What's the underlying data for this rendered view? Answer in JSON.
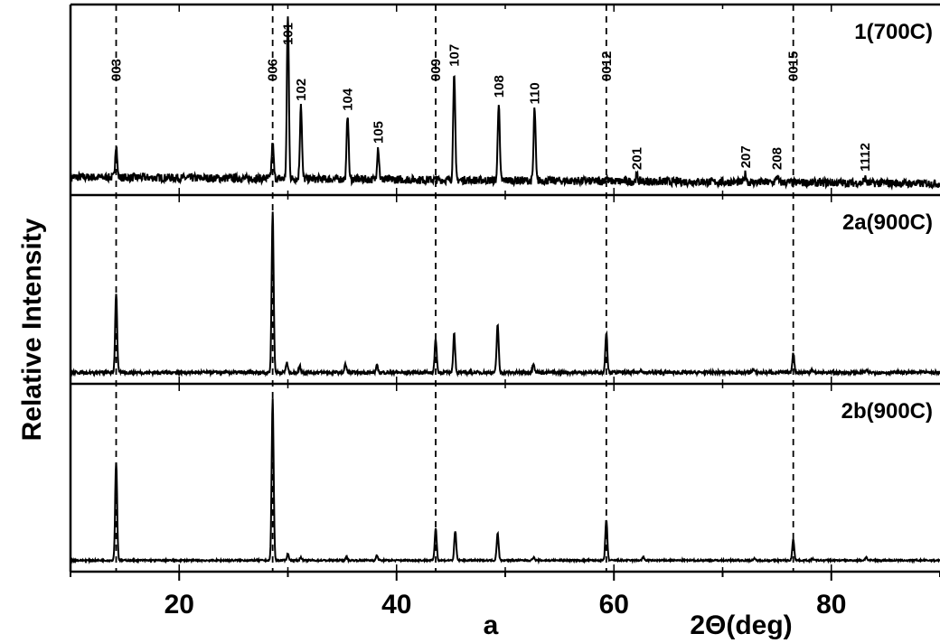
{
  "chart_data": {
    "type": "line",
    "xlabel": "2Θ(deg)",
    "ylabel": "Relative Intensity",
    "sublabel": "a",
    "xlim": [
      10,
      90
    ],
    "x_ticks": [
      "20",
      "40",
      "60",
      "80"
    ],
    "y_ticks_shown": false,
    "grid": false,
    "reference_lines": [
      14.2,
      28.6,
      43.6,
      59.3,
      76.5
    ],
    "panels": [
      {
        "label": "1(700C)",
        "baseline_noise": 0.05,
        "peaks": [
          {
            "x": 14.2,
            "h": 0.2
          },
          {
            "x": 28.6,
            "h": 0.22
          },
          {
            "x": 30.0,
            "h": 1.0
          },
          {
            "x": 31.2,
            "h": 0.46
          },
          {
            "x": 35.5,
            "h": 0.4
          },
          {
            "x": 38.3,
            "h": 0.2
          },
          {
            "x": 45.3,
            "h": 0.67
          },
          {
            "x": 49.4,
            "h": 0.48
          },
          {
            "x": 52.7,
            "h": 0.44
          },
          {
            "x": 59.3,
            "h": 0.03
          },
          {
            "x": 62.1,
            "h": 0.04
          },
          {
            "x": 72.1,
            "h": 0.05
          },
          {
            "x": 75.0,
            "h": 0.04
          },
          {
            "x": 83.1,
            "h": 0.03
          }
        ],
        "peak_labels": [
          {
            "x": 14.2,
            "text": "003"
          },
          {
            "x": 28.6,
            "text": "006"
          },
          {
            "x": 30.0,
            "text": "101"
          },
          {
            "x": 31.2,
            "text": "102"
          },
          {
            "x": 35.5,
            "text": "104"
          },
          {
            "x": 38.3,
            "text": "105"
          },
          {
            "x": 43.6,
            "text": "009"
          },
          {
            "x": 45.3,
            "text": "107"
          },
          {
            "x": 49.4,
            "text": "108"
          },
          {
            "x": 52.7,
            "text": "110"
          },
          {
            "x": 59.3,
            "text": "0012"
          },
          {
            "x": 62.1,
            "text": "201"
          },
          {
            "x": 72.1,
            "text": "207"
          },
          {
            "x": 75.0,
            "text": "208"
          },
          {
            "x": 76.5,
            "text": "0015"
          },
          {
            "x": 83.1,
            "text": "1112"
          }
        ]
      },
      {
        "label": "2a(900C)",
        "baseline_noise": 0.02,
        "peaks": [
          {
            "x": 14.2,
            "h": 0.49
          },
          {
            "x": 28.6,
            "h": 1.0
          },
          {
            "x": 29.9,
            "h": 0.06
          },
          {
            "x": 31.1,
            "h": 0.04
          },
          {
            "x": 35.3,
            "h": 0.05
          },
          {
            "x": 38.2,
            "h": 0.04
          },
          {
            "x": 43.6,
            "h": 0.21
          },
          {
            "x": 45.3,
            "h": 0.24
          },
          {
            "x": 49.3,
            "h": 0.3
          },
          {
            "x": 52.6,
            "h": 0.06
          },
          {
            "x": 59.3,
            "h": 0.25
          },
          {
            "x": 62.5,
            "h": 0.02
          },
          {
            "x": 72.8,
            "h": 0.02
          },
          {
            "x": 76.5,
            "h": 0.12
          },
          {
            "x": 78.2,
            "h": 0.02
          },
          {
            "x": 83.2,
            "h": 0.01
          }
        ]
      },
      {
        "label": "2b(900C)",
        "baseline_noise": 0.01,
        "peaks": [
          {
            "x": 14.2,
            "h": 0.61
          },
          {
            "x": 28.6,
            "h": 1.0
          },
          {
            "x": 30.0,
            "h": 0.04
          },
          {
            "x": 31.2,
            "h": 0.02
          },
          {
            "x": 35.4,
            "h": 0.02
          },
          {
            "x": 38.2,
            "h": 0.03
          },
          {
            "x": 43.6,
            "h": 0.2
          },
          {
            "x": 45.4,
            "h": 0.18
          },
          {
            "x": 49.3,
            "h": 0.17
          },
          {
            "x": 52.6,
            "h": 0.02
          },
          {
            "x": 59.3,
            "h": 0.25
          },
          {
            "x": 62.7,
            "h": 0.02
          },
          {
            "x": 72.9,
            "h": 0.01
          },
          {
            "x": 76.5,
            "h": 0.13
          },
          {
            "x": 78.3,
            "h": 0.01
          },
          {
            "x": 83.2,
            "h": 0.02
          }
        ]
      }
    ]
  }
}
